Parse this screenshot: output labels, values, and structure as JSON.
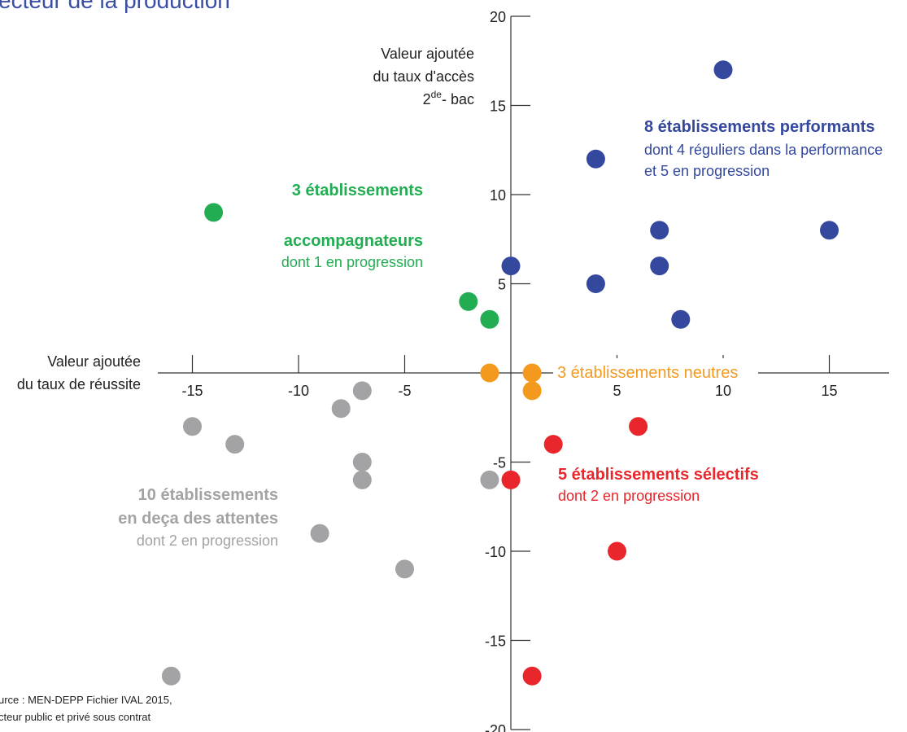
{
  "title": "ecteur de la production",
  "source_lines": [
    "urce : MEN-DEPP Fichier IVAL 2015,",
    "cteur public et privé sous contrat"
  ],
  "chart_data": {
    "type": "scatter",
    "xlabel": [
      "Valeur ajoutée",
      "du taux de réussite"
    ],
    "ylabel": [
      "Valeur ajoutée",
      "du taux d'accès"
    ],
    "ylabel_sup": {
      "pre": "2",
      "sup": "de",
      "post": "- bac"
    },
    "xlim": [
      -17.5,
      18
    ],
    "ylim": [
      -20,
      20
    ],
    "x_ticks": [
      -15,
      -10,
      -5,
      5,
      10,
      15
    ],
    "y_ticks": [
      20,
      15,
      10,
      5,
      -5,
      -10,
      -15,
      -20
    ],
    "grid": false,
    "colors": {
      "performants": "#34499e",
      "accompagnateurs": "#22ad52",
      "neutres": "#f39a1e",
      "selectifs": "#e8262b",
      "en_deca": "#a3a3a5"
    },
    "series": [
      {
        "name": "8 établissements performants",
        "color_key": "performants",
        "points": [
          [
            10,
            17
          ],
          [
            4,
            12
          ],
          [
            7,
            8
          ],
          [
            15,
            8
          ],
          [
            0,
            6
          ],
          [
            7,
            6
          ],
          [
            4,
            5
          ],
          [
            8,
            3
          ]
        ]
      },
      {
        "name": "3 établissements accompagnateurs",
        "color_key": "accompagnateurs",
        "points": [
          [
            -14,
            9
          ],
          [
            -2,
            4
          ],
          [
            -1,
            3
          ]
        ]
      },
      {
        "name": "3 établissements neutres",
        "color_key": "neutres",
        "points": [
          [
            -1,
            0
          ],
          [
            1,
            0
          ],
          [
            1,
            -1
          ]
        ]
      },
      {
        "name": "5 établissements sélectifs",
        "color_key": "selectifs",
        "points": [
          [
            6,
            -3
          ],
          [
            2,
            -4
          ],
          [
            0,
            -6
          ],
          [
            5,
            -10
          ],
          [
            1,
            -17
          ]
        ]
      },
      {
        "name": "10 établissements en deça des attentes",
        "color_key": "en_deca",
        "points": [
          [
            -7,
            -1
          ],
          [
            -8,
            -2
          ],
          [
            -15,
            -3
          ],
          [
            -13,
            -4
          ],
          [
            -7,
            -5
          ],
          [
            -7,
            -6
          ],
          [
            -1,
            -6
          ],
          [
            -9,
            -9
          ],
          [
            -5,
            -11
          ],
          [
            -16,
            -17
          ]
        ]
      }
    ],
    "annotations": {
      "performants": {
        "title": "8 établissements performants",
        "sub": [
          "dont 4 réguliers dans la performance",
          "et 5 en progression"
        ]
      },
      "accompagnateurs": {
        "title": [
          "3 établissements",
          "accompagnateurs"
        ],
        "sub": "dont 1 en progression"
      },
      "neutres": {
        "title": "3 établissements neutres"
      },
      "selectifs": {
        "title": "5 établissements sélectifs",
        "sub": "dont 2 en progression"
      },
      "en_deca": {
        "title": [
          "10 établissements",
          "en deça des attentes"
        ],
        "sub": "dont 2 en progression"
      }
    }
  }
}
